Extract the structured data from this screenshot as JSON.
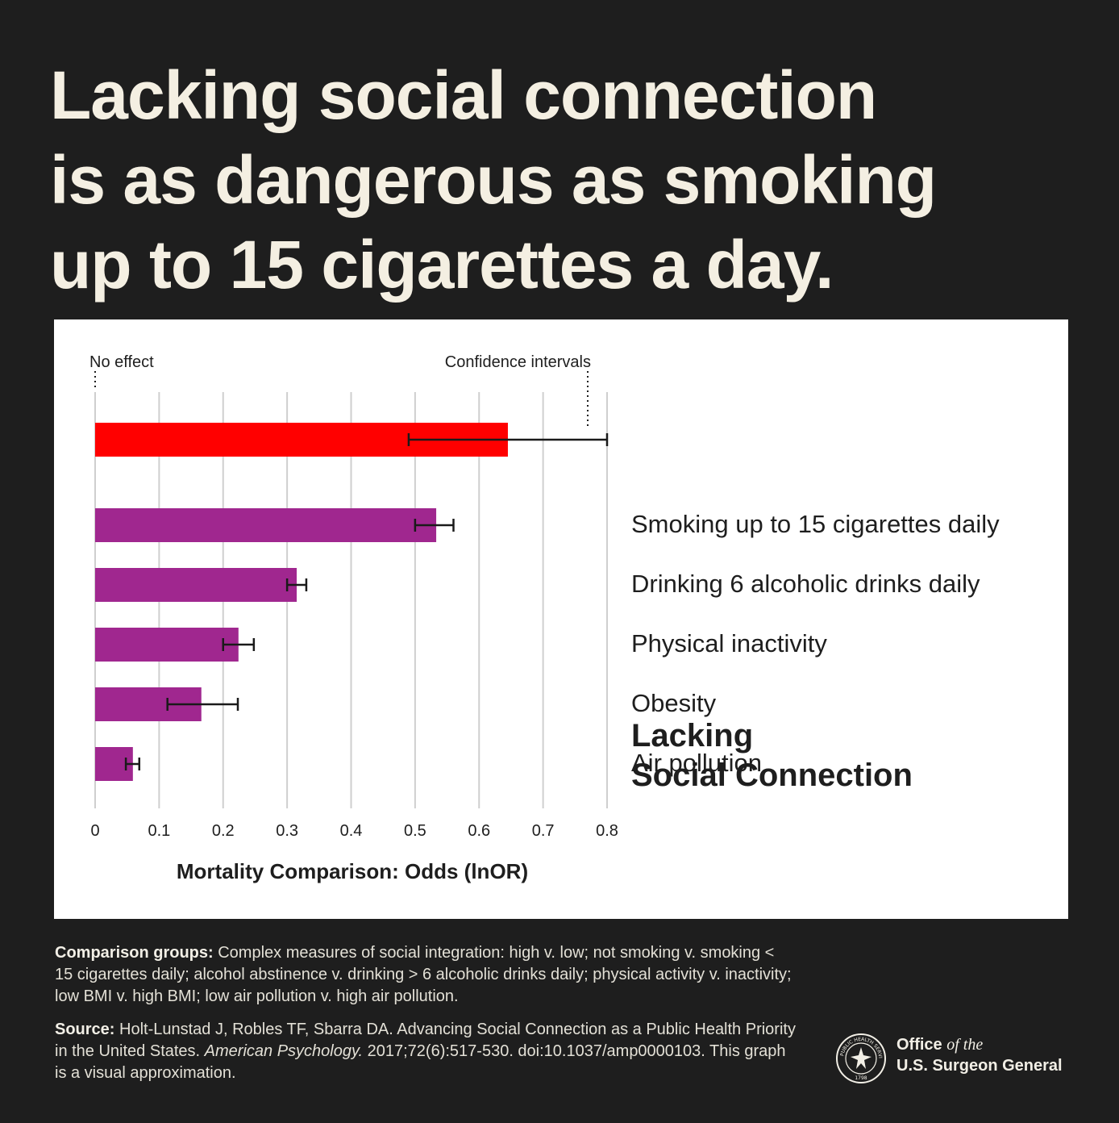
{
  "headline": [
    "Lacking social connection",
    "is as dangerous as smoking",
    "up to 15 cigarettes a day."
  ],
  "chart_data": {
    "type": "bar",
    "orientation": "horizontal",
    "xlabel": "Mortality Comparison: Odds (lnOR)",
    "xlim": [
      0,
      0.8
    ],
    "xticks": [
      0,
      0.1,
      0.2,
      0.3,
      0.4,
      0.5,
      0.6,
      0.7,
      0.8
    ],
    "grid": true,
    "annotations": [
      "No effect",
      "Confidence intervals"
    ],
    "categories": [
      "Lacking Social Connection",
      "Smoking up to 15 cigarettes daily",
      "Drinking 6 alcoholic drinks daily",
      "Physical inactivity",
      "Obesity",
      "Air pollution"
    ],
    "values": [
      0.645,
      0.533,
      0.315,
      0.224,
      0.166,
      0.059
    ],
    "ci_low": [
      0.49,
      0.5,
      0.3,
      0.2,
      0.113,
      0.048
    ],
    "ci_high": [
      0.8,
      0.56,
      0.33,
      0.248,
      0.223,
      0.069
    ],
    "colors": [
      "#ff0000",
      "#a0278f",
      "#a0278f",
      "#a0278f",
      "#a0278f",
      "#a0278f"
    ]
  },
  "labels": {
    "first": [
      "Lacking",
      "Social Connection"
    ],
    "others": [
      "Smoking up to 15 cigarettes daily",
      "Drinking 6 alcoholic drinks daily",
      "Physical inactivity",
      "Obesity",
      "Air pollution"
    ]
  },
  "notes": {
    "comparison_label": "Comparison groups:",
    "comparison_text": "Complex measures of social integration: high v. low; not smoking v. smoking < 15 cigarettes daily; alcohol abstinence v. drinking > 6 alcoholic drinks daily; physical activity v. inactivity; low BMI v. high BMI; low air pollution v. high air pollution.",
    "source_label": "Source:",
    "source_text_1": "Holt-Lunstad J, Robles TF, Sbarra DA. Advancing Social Connection as a Public Health Priority in the United States.",
    "source_journal": "American Psychology.",
    "source_text_2": "2017;72(6):517-530. doi:10.1037/amp0000103. This graph is a visual approximation."
  },
  "logo": {
    "office": "Office",
    "of_the": "of the",
    "name": "U.S. Surgeon General",
    "seal_text": "PUBLIC HEALTH SERVICE",
    "seal_year": "1798"
  }
}
